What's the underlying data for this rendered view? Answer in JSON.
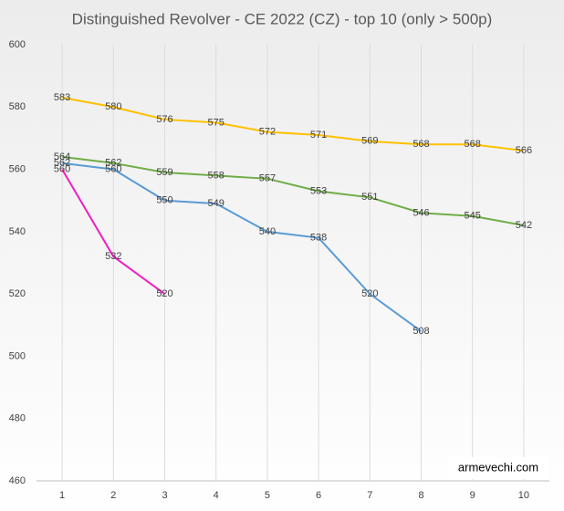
{
  "chart_data": {
    "type": "line",
    "title": "Distinguished Revolver - CE 2022 (CZ) - top 10 (only > 500p)",
    "categories": [
      "1",
      "2",
      "3",
      "4",
      "5",
      "6",
      "7",
      "8",
      "9",
      "10"
    ],
    "series": [
      {
        "color": "#ffc000",
        "values": [
          583,
          580,
          576,
          575,
          572,
          571,
          569,
          568,
          568,
          566
        ]
      },
      {
        "color": "#70ad47",
        "values": [
          564,
          562,
          559,
          558,
          557,
          553,
          551,
          546,
          545,
          542
        ]
      },
      {
        "color": "#5b9bd5",
        "values": [
          562,
          560,
          550,
          549,
          540,
          538,
          520,
          508,
          null,
          null
        ]
      },
      {
        "color": "#f01ec0",
        "values": [
          560,
          532,
          520,
          null,
          null,
          null,
          null,
          null,
          null,
          null
        ]
      }
    ],
    "ylim": [
      460,
      600
    ],
    "yticks": [
      460,
      480,
      500,
      520,
      540,
      560,
      580,
      600
    ],
    "grid": true,
    "watermark": "armevechi.com"
  }
}
